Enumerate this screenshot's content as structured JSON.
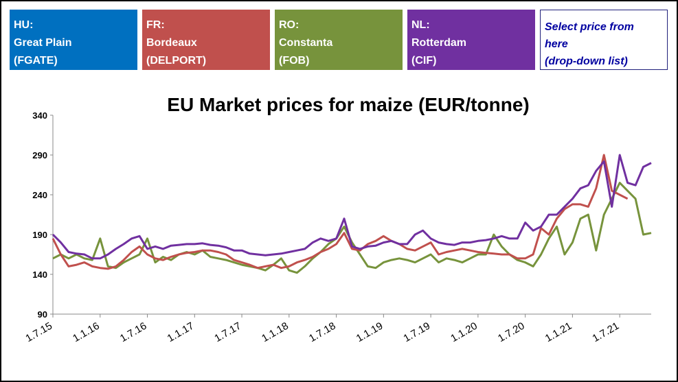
{
  "buttons": [
    {
      "lines": [
        "HU:",
        "Great Plain",
        "(FGATE)"
      ],
      "color": "#0070c0"
    },
    {
      "lines": [
        "FR:",
        "Bordeaux",
        "(DELPORT)"
      ],
      "color": "#c0504d"
    },
    {
      "lines": [
        "RO:",
        "Constanta",
        "(FOB)"
      ],
      "color": "#77933c"
    },
    {
      "lines": [
        "NL:",
        "Rotterdam",
        "(CIF)"
      ],
      "color": "#7030a0"
    },
    {
      "lines": [
        "Select price from",
        "here",
        "(drop-down list)"
      ],
      "color": "#ffffff"
    }
  ],
  "chart_data": {
    "type": "line",
    "title": "EU Market prices for maize (EUR/tonne)",
    "ylim": [
      90,
      340
    ],
    "yticks": [
      90,
      140,
      190,
      240,
      290,
      340
    ],
    "xlim": [
      0,
      76
    ],
    "xticks": [
      {
        "value": 0,
        "label": "1.7.15"
      },
      {
        "value": 6,
        "label": "1.1.16"
      },
      {
        "value": 12,
        "label": "1.7.16"
      },
      {
        "value": 18,
        "label": "1.1.17"
      },
      {
        "value": 24,
        "label": "1.7.17"
      },
      {
        "value": 30,
        "label": "1.1.18"
      },
      {
        "value": 36,
        "label": "1.7.18"
      },
      {
        "value": 42,
        "label": "1.1.19"
      },
      {
        "value": 48,
        "label": "1.7.19"
      },
      {
        "value": 54,
        "label": "1.1.20"
      },
      {
        "value": 60,
        "label": "1.7.20"
      },
      {
        "value": 66,
        "label": "1.1.21"
      },
      {
        "value": 72,
        "label": "1.7.21"
      }
    ],
    "x": [
      0,
      1,
      2,
      3,
      4,
      5,
      6,
      7,
      8,
      9,
      10,
      11,
      12,
      13,
      14,
      15,
      16,
      17,
      18,
      19,
      20,
      21,
      22,
      23,
      24,
      25,
      26,
      27,
      28,
      29,
      30,
      31,
      32,
      33,
      34,
      35,
      36,
      37,
      38,
      39,
      40,
      41,
      42,
      43,
      44,
      45,
      46,
      47,
      48,
      49,
      50,
      51,
      52,
      53,
      54,
      55,
      56,
      57,
      58,
      59,
      60,
      61,
      62,
      63,
      64,
      65,
      66,
      67,
      68,
      69,
      70,
      71,
      72,
      73,
      74,
      75,
      76
    ],
    "series": [
      {
        "color": "#77933c",
        "values": [
          160,
          165,
          160,
          165,
          160,
          158,
          185,
          150,
          148,
          155,
          160,
          165,
          185,
          155,
          162,
          158,
          165,
          168,
          165,
          170,
          162,
          160,
          158,
          155,
          152,
          150,
          148,
          145,
          152,
          160,
          145,
          142,
          150,
          160,
          168,
          178,
          185,
          200,
          180,
          165,
          150,
          148,
          155,
          158,
          160,
          158,
          155,
          160,
          165,
          155,
          160,
          158,
          155,
          160,
          165,
          165,
          190,
          175,
          165,
          158,
          155,
          150,
          165,
          185,
          200,
          165,
          180,
          210,
          215,
          170,
          215,
          235,
          255,
          245,
          235,
          190,
          192
        ]
      },
      {
        "color": "#c0504d",
        "values": [
          185,
          165,
          150,
          152,
          155,
          150,
          148,
          147,
          150,
          158,
          168,
          175,
          165,
          160,
          158,
          162,
          165,
          167,
          168,
          170,
          170,
          168,
          165,
          158,
          155,
          152,
          148,
          150,
          152,
          148,
          150,
          155,
          158,
          162,
          168,
          172,
          178,
          192,
          172,
          170,
          178,
          182,
          188,
          182,
          178,
          172,
          170,
          175,
          180,
          165,
          168,
          170,
          172,
          170,
          168,
          167,
          166,
          165,
          165,
          160,
          160,
          165,
          198,
          190,
          210,
          222,
          228,
          228,
          225,
          248,
          290,
          245,
          240,
          235,
          null,
          null,
          null
        ]
      },
      {
        "color": "#7030a0",
        "values": [
          190,
          180,
          168,
          166,
          165,
          160,
          160,
          165,
          172,
          178,
          185,
          188,
          172,
          175,
          172,
          176,
          177,
          178,
          178,
          179,
          177,
          176,
          174,
          170,
          170,
          166,
          165,
          164,
          165,
          166,
          168,
          170,
          172,
          180,
          185,
          182,
          185,
          210,
          175,
          172,
          175,
          176,
          180,
          182,
          178,
          178,
          190,
          195,
          185,
          180,
          178,
          177,
          180,
          180,
          182,
          183,
          185,
          188,
          185,
          185,
          205,
          195,
          200,
          215,
          215,
          225,
          235,
          248,
          252,
          270,
          282,
          225,
          290,
          255,
          252,
          275,
          280
        ]
      }
    ]
  }
}
